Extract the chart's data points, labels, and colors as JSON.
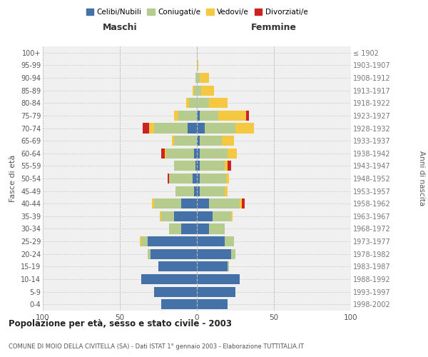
{
  "age_groups": [
    "0-4",
    "5-9",
    "10-14",
    "15-19",
    "20-24",
    "25-29",
    "30-34",
    "35-39",
    "40-44",
    "45-49",
    "50-54",
    "55-59",
    "60-64",
    "65-69",
    "70-74",
    "75-79",
    "80-84",
    "85-89",
    "90-94",
    "95-99",
    "100+"
  ],
  "birth_years": [
    "1998-2002",
    "1993-1997",
    "1988-1992",
    "1983-1987",
    "1978-1982",
    "1973-1977",
    "1968-1972",
    "1963-1967",
    "1958-1962",
    "1953-1957",
    "1948-1952",
    "1943-1947",
    "1938-1942",
    "1933-1937",
    "1928-1932",
    "1923-1927",
    "1918-1922",
    "1913-1917",
    "1908-1912",
    "1903-1907",
    "≤ 1902"
  ],
  "male": {
    "celibi": [
      23,
      28,
      36,
      25,
      30,
      32,
      10,
      15,
      10,
      2,
      3,
      1,
      2,
      0,
      6,
      0,
      0,
      0,
      0,
      0,
      0
    ],
    "coniugati": [
      0,
      0,
      0,
      0,
      2,
      4,
      8,
      8,
      18,
      12,
      15,
      14,
      18,
      15,
      22,
      12,
      5,
      2,
      1,
      0,
      0
    ],
    "vedovi": [
      0,
      0,
      0,
      0,
      0,
      1,
      0,
      1,
      1,
      0,
      0,
      0,
      1,
      1,
      3,
      3,
      2,
      1,
      0,
      0,
      0
    ],
    "divorziati": [
      0,
      0,
      0,
      0,
      0,
      0,
      0,
      0,
      0,
      0,
      1,
      0,
      2,
      0,
      4,
      0,
      0,
      0,
      0,
      0,
      0
    ]
  },
  "female": {
    "nubili": [
      20,
      25,
      28,
      20,
      22,
      18,
      8,
      10,
      8,
      2,
      2,
      2,
      2,
      2,
      5,
      2,
      0,
      0,
      0,
      0,
      0
    ],
    "coniugate": [
      0,
      0,
      0,
      1,
      3,
      6,
      10,
      12,
      20,
      16,
      17,
      16,
      18,
      14,
      20,
      12,
      8,
      3,
      2,
      0,
      0
    ],
    "vedove": [
      0,
      0,
      0,
      0,
      0,
      0,
      0,
      1,
      1,
      2,
      2,
      2,
      6,
      8,
      12,
      18,
      12,
      8,
      6,
      1,
      0
    ],
    "divorziate": [
      0,
      0,
      0,
      0,
      0,
      0,
      0,
      0,
      2,
      0,
      0,
      2,
      0,
      0,
      0,
      2,
      0,
      0,
      0,
      0,
      0
    ]
  },
  "colors": {
    "celibi": "#4472a8",
    "coniugati": "#b5cc8e",
    "vedovi": "#f5c842",
    "divorziati": "#cc2222"
  },
  "title": "Popolazione per età, sesso e stato civile - 2003",
  "subtitle": "COMUNE DI MOIO DELLA CIVITELLA (SA) - Dati ISTAT 1° gennaio 2003 - Elaborazione TUTTITALIA.IT",
  "xlabel_left": "Maschi",
  "xlabel_right": "Femmine",
  "ylabel_left": "Fasce di età",
  "ylabel_right": "Anni di nascita",
  "xlim": 100,
  "background_color": "#f0f0f0",
  "legend_labels": [
    "Celibi/Nubili",
    "Coniugati/e",
    "Vedovi/e",
    "Divorziati/e"
  ]
}
